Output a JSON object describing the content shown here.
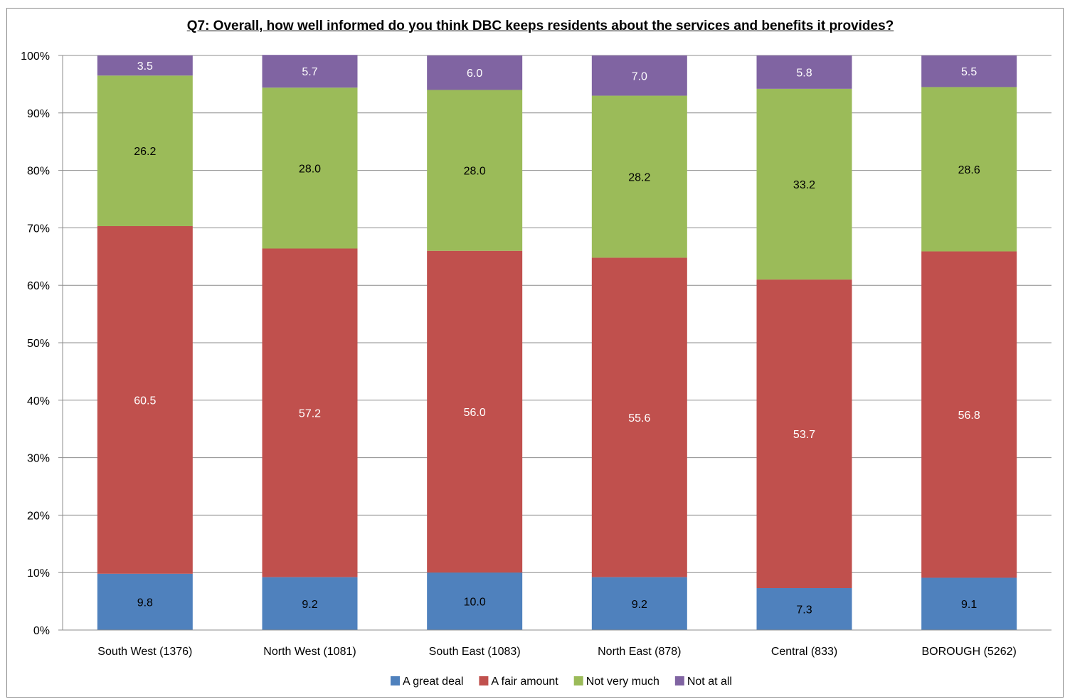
{
  "chart_data": {
    "type": "bar",
    "stacked": true,
    "percent_stacked": true,
    "title": "Q7: Overall, how well informed do you think DBC keeps residents about the services and benefits it provides?",
    "categories": [
      "South West (1376)",
      "North West (1081)",
      "South East (1083)",
      "North East (878)",
      "Central (833)",
      "BOROUGH (5262)"
    ],
    "series": [
      {
        "name": "A great deal",
        "color": "#4f81bd",
        "values": [
          9.8,
          9.2,
          10.0,
          9.2,
          7.3,
          9.1
        ],
        "labels": [
          "9.8",
          "9.2",
          "10.0",
          "9.2",
          "7.3",
          "9.1"
        ]
      },
      {
        "name": "A fair amount",
        "color": "#c0504d",
        "values": [
          60.5,
          57.2,
          56.0,
          55.6,
          53.7,
          56.8
        ],
        "labels": [
          "60.5",
          "57.2",
          "56.0",
          "55.6",
          "53.7",
          "56.8"
        ]
      },
      {
        "name": "Not very much",
        "color": "#9bbb59",
        "values": [
          26.2,
          28.0,
          28.0,
          28.2,
          33.2,
          28.6
        ],
        "labels": [
          "26.2",
          "28.0",
          "28.0",
          "28.2",
          "33.2",
          "28.6"
        ]
      },
      {
        "name": "Not at all",
        "color": "#8064a2",
        "values": [
          3.5,
          5.7,
          6.0,
          7.0,
          5.8,
          5.5
        ],
        "labels": [
          "3.5",
          "5.7",
          "6.0",
          "7.0",
          "5.8",
          "5.5"
        ]
      }
    ],
    "yticks": [
      "0%",
      "10%",
      "20%",
      "30%",
      "40%",
      "50%",
      "60%",
      "70%",
      "80%",
      "90%",
      "100%"
    ],
    "ylim": [
      0,
      100
    ],
    "grid": true,
    "legend": "bottom",
    "label_colors": {
      "A great deal": "#000000",
      "A fair amount": "#ffffff",
      "Not very much": "#000000",
      "Not at all": "#ffffff"
    }
  }
}
